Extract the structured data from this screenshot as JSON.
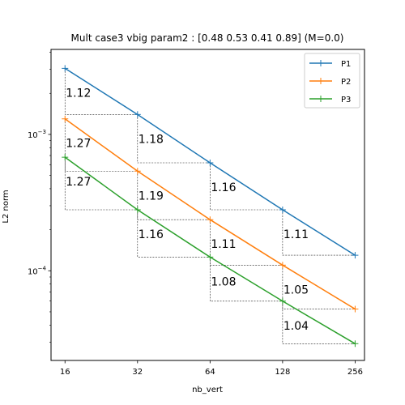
{
  "chart_data": {
    "type": "line",
    "title": "Mult case3 vbig param2 : [0.48 0.53 0.41 0.89] (M=0.0)",
    "xlabel": "nb_vert",
    "ylabel": "L2 norm",
    "xscale": "log2",
    "yscale": "log10",
    "xlim": [
      14,
      280
    ],
    "ylim": [
      2.2e-05,
      0.0042
    ],
    "x": [
      16,
      32,
      64,
      128,
      256
    ],
    "xtick_labels": [
      "16",
      "32",
      "64",
      "128",
      "256"
    ],
    "ytick_labels": [
      {
        "value": 0.001,
        "base": "10",
        "exp": "−3"
      },
      {
        "value": 0.0001,
        "base": "10",
        "exp": "−4"
      }
    ],
    "legend_position": "top-right",
    "series": [
      {
        "name": "P1",
        "color": "#1f77b4",
        "values": [
          0.00305,
          0.0014,
          0.000619,
          0.00028,
          0.00013
        ],
        "slopes": [
          "1.12",
          "1.18",
          "1.16",
          "1.11"
        ]
      },
      {
        "name": "P2",
        "color": "#ff7f0e",
        "values": [
          0.0013,
          0.000538,
          0.000237,
          0.00011,
          5.24e-05
        ],
        "slopes": [
          "1.27",
          "1.19",
          "1.11",
          "1.05"
        ]
      },
      {
        "name": "P3",
        "color": "#2ca02c",
        "values": [
          0.00068,
          0.00028,
          0.000126,
          5.99e-05,
          2.92e-05
        ],
        "slopes": [
          "1.27",
          "1.16",
          "1.08",
          "1.04"
        ]
      }
    ]
  }
}
